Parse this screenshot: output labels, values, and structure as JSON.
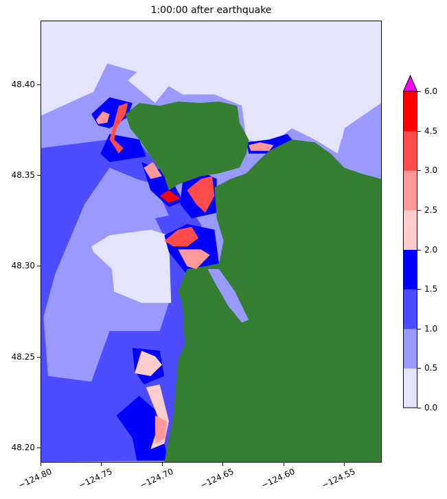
{
  "chart_data": {
    "type": "heatmap",
    "title": "1:00:00 after earthquake",
    "xlim": [
      -124.8,
      -124.519
    ],
    "ylim": [
      48.1917,
      48.435
    ],
    "xticks": [
      "−124.80",
      "−124.75",
      "−124.70",
      "−124.65",
      "−124.60",
      "−124.55"
    ],
    "xtick_values": [
      -124.8,
      -124.75,
      -124.7,
      -124.65,
      -124.6,
      -124.55
    ],
    "yticks": [
      "48.20",
      "48.25",
      "48.30",
      "48.35",
      "48.40"
    ],
    "ytick_values": [
      48.2,
      48.25,
      48.3,
      48.35,
      48.4
    ],
    "land_color": "#357f33",
    "colorbar": {
      "levels": [
        0.0,
        0.5,
        1.0,
        1.5,
        2.0,
        2.5,
        3.0,
        4.5,
        6.0
      ],
      "tick_labels": [
        "0.0",
        "0.5",
        "1.0",
        "1.5",
        "2.0",
        "2.5",
        "3.0",
        "4.5",
        "6.0"
      ],
      "colors": [
        "#e4e4ff",
        "#9999ff",
        "#4d4dff",
        "#0000ff",
        "#ffcccc",
        "#ff9999",
        "#ff4d4d",
        "#ff0000"
      ],
      "over_color": "#ff00ff",
      "extend": "max"
    }
  }
}
